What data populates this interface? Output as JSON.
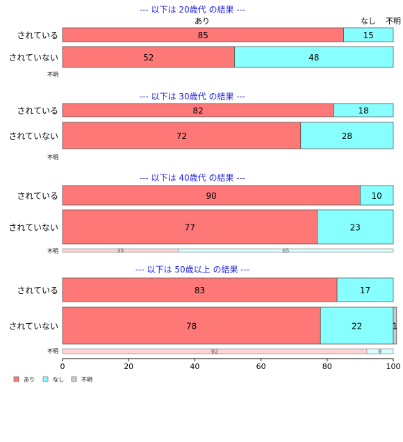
{
  "chart_data": {
    "type": "bar",
    "orientation": "horizontal",
    "stacked": "percent",
    "xlim": [
      0,
      100
    ],
    "x_ticks": [
      "0",
      "20",
      "40",
      "60",
      "80",
      "100"
    ],
    "grid": false,
    "legend_position": "bottom-left",
    "categories": [
      "あり",
      "なし",
      "不明"
    ],
    "colors": {
      "あり": "#FF7878",
      "なし": "#88FFFF",
      "不明": "#CCCCCC"
    },
    "top_header_labels": [
      "あり",
      "なし",
      "不明"
    ],
    "panels": [
      {
        "title": "--- 以下は 20歳代 の結果 ---",
        "rows": [
          {
            "label": "されている",
            "values": [
              85,
              15,
              0
            ],
            "labels": [
              "85",
              "15",
              ""
            ]
          },
          {
            "label": "されていない",
            "values": [
              52,
              48,
              0
            ],
            "labels": [
              "52",
              "48",
              ""
            ]
          },
          {
            "label": "不明",
            "values": [
              0,
              0,
              0
            ],
            "labels": [
              "",
              "",
              ""
            ]
          }
        ]
      },
      {
        "title": "--- 以下は 30歳代 の結果 ---",
        "rows": [
          {
            "label": "されている",
            "values": [
              82,
              18,
              0
            ],
            "labels": [
              "82",
              "18",
              ""
            ]
          },
          {
            "label": "されていない",
            "values": [
              72,
              28,
              0
            ],
            "labels": [
              "72",
              "28",
              ""
            ]
          },
          {
            "label": "不明",
            "values": [
              0,
              0,
              0
            ],
            "labels": [
              "",
              "",
              ""
            ]
          }
        ]
      },
      {
        "title": "--- 以下は 40歳代 の結果 ---",
        "rows": [
          {
            "label": "されている",
            "values": [
              90,
              10,
              0
            ],
            "labels": [
              "90",
              "10",
              ""
            ]
          },
          {
            "label": "されていない",
            "values": [
              77,
              23,
              0
            ],
            "labels": [
              "77",
              "23",
              ""
            ]
          },
          {
            "label": "不明",
            "values": [
              35,
              65,
              0
            ],
            "labels": [
              "35",
              "65",
              ""
            ]
          }
        ]
      },
      {
        "title": "--- 以下は 50歳以上 の結果 ---",
        "rows": [
          {
            "label": "されている",
            "values": [
              83,
              17,
              0
            ],
            "labels": [
              "83",
              "17",
              ""
            ]
          },
          {
            "label": "されていない",
            "values": [
              78,
              22,
              1
            ],
            "labels": [
              "78",
              "22",
              "1"
            ]
          },
          {
            "label": "不明",
            "values": [
              92,
              8,
              0
            ],
            "labels": [
              "92",
              "8",
              ""
            ]
          }
        ]
      }
    ]
  }
}
